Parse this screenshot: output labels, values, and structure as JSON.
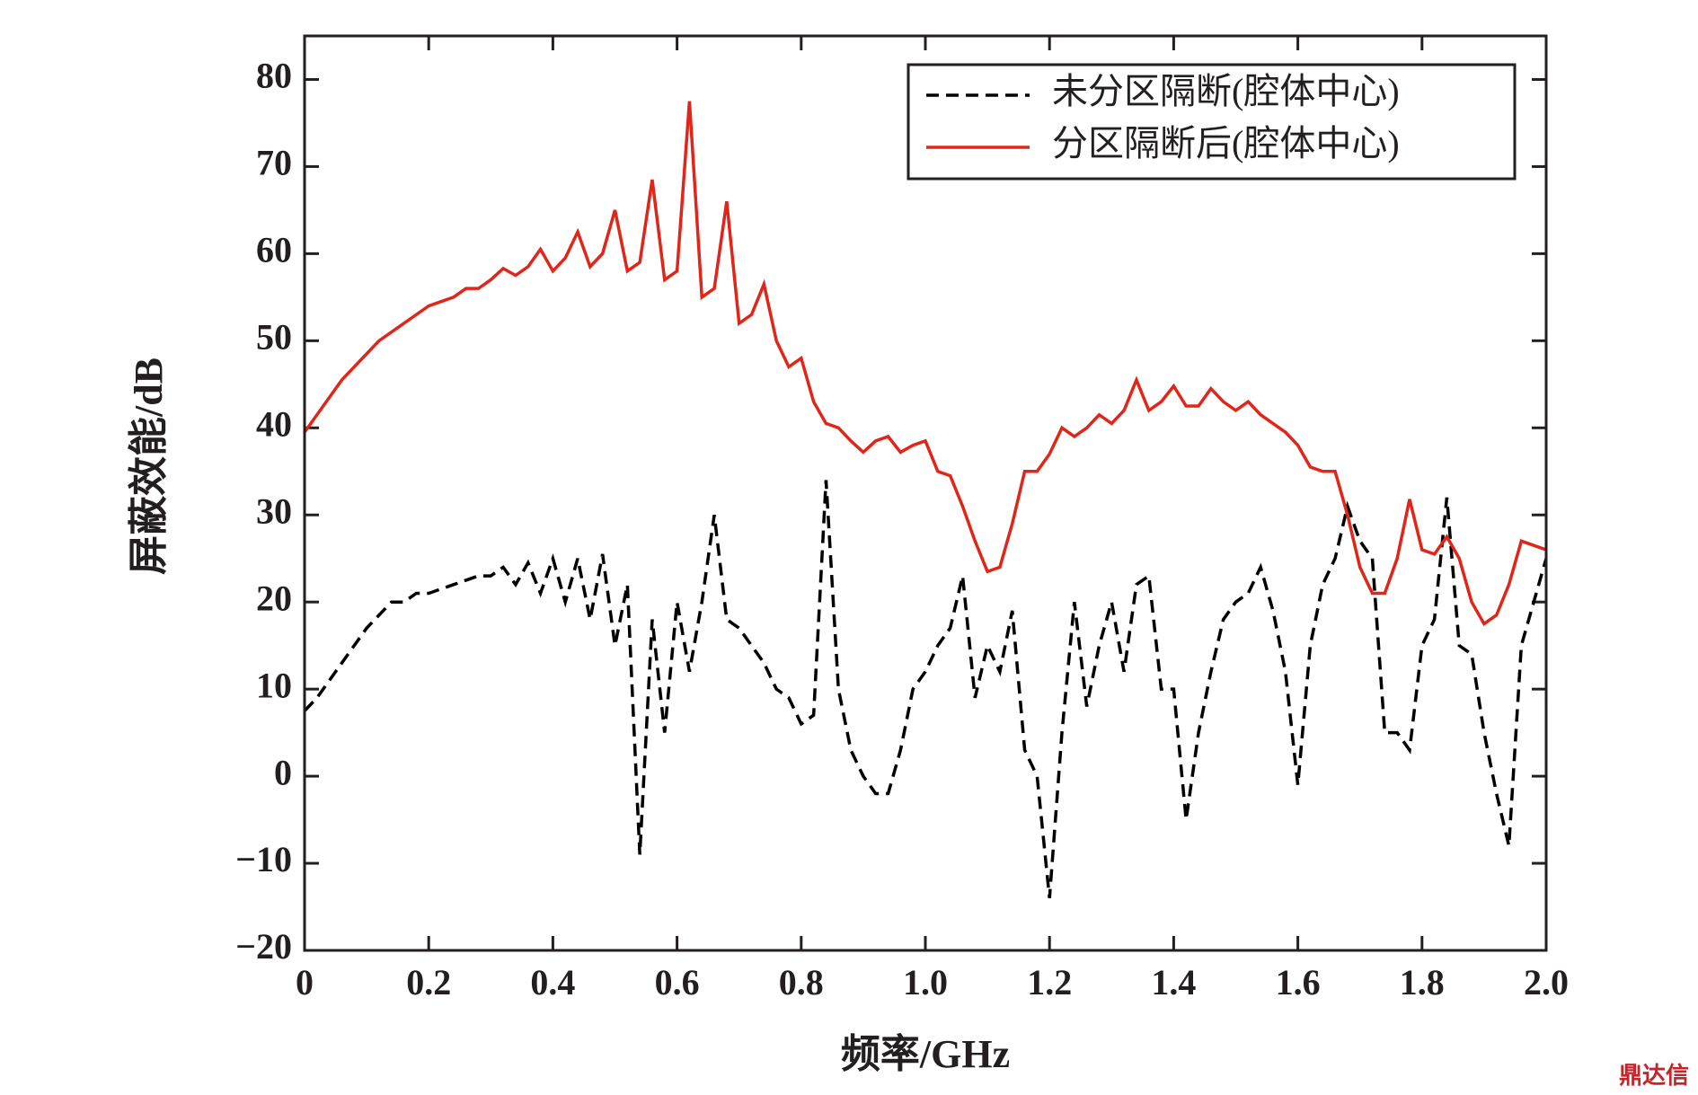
{
  "chart_data": {
    "type": "line",
    "xlabel": "频率/GHz",
    "ylabel": "屏蔽效能/dB",
    "x": [
      0,
      0.02,
      0.04,
      0.06,
      0.08,
      0.1,
      0.12,
      0.14,
      0.16,
      0.18,
      0.2,
      0.22,
      0.24,
      0.26,
      0.28,
      0.3,
      0.32,
      0.34,
      0.36,
      0.38,
      0.4,
      0.42,
      0.44,
      0.46,
      0.48,
      0.5,
      0.52,
      0.54,
      0.56,
      0.58,
      0.6,
      0.62,
      0.64,
      0.66,
      0.68,
      0.7,
      0.72,
      0.74,
      0.76,
      0.78,
      0.8,
      0.82,
      0.84,
      0.86,
      0.88,
      0.9,
      0.92,
      0.94,
      0.96,
      0.98,
      1,
      1.02,
      1.04,
      1.06,
      1.08,
      1.1,
      1.12,
      1.14,
      1.16,
      1.18,
      1.2,
      1.22,
      1.24,
      1.26,
      1.28,
      1.3,
      1.32,
      1.34,
      1.36,
      1.38,
      1.4,
      1.42,
      1.44,
      1.46,
      1.48,
      1.5,
      1.52,
      1.54,
      1.56,
      1.58,
      1.6,
      1.62,
      1.64,
      1.66,
      1.68,
      1.7,
      1.72,
      1.74,
      1.76,
      1.78,
      1.8,
      1.82,
      1.84,
      1.86,
      1.88,
      1.9,
      1.92,
      1.94,
      1.96,
      1.98,
      2
    ],
    "series": [
      {
        "name": "未分区隔断(腔体中心)",
        "color": "#000000",
        "dash": true,
        "values": [
          7.5,
          9,
          11,
          13,
          15,
          17,
          18.5,
          20,
          20,
          21,
          21,
          21.5,
          22,
          22.5,
          23,
          23,
          24,
          22,
          24.5,
          21,
          25,
          20,
          25,
          18,
          25.5,
          15,
          22,
          -9,
          18,
          5,
          20,
          12,
          20,
          30,
          18,
          17,
          15,
          13,
          10,
          9,
          6,
          7,
          34,
          10,
          3,
          0,
          -2,
          -2,
          3,
          10,
          12,
          15,
          17,
          23,
          9,
          15,
          12,
          19,
          3,
          0,
          -14,
          5,
          20,
          8,
          15,
          20,
          12,
          22,
          23,
          10,
          10,
          -5,
          5,
          12,
          18,
          20,
          21,
          24,
          19,
          12,
          -1,
          15,
          22,
          25,
          31,
          27,
          25,
          5,
          5,
          3,
          15,
          18,
          32,
          15,
          14,
          5,
          -2,
          -8,
          15,
          20,
          25
        ]
      },
      {
        "name": "分区隔断后(腔体中心)",
        "color": "#e0261b",
        "dash": false,
        "values": [
          39.5,
          41.5,
          43.5,
          45.5,
          47,
          48.5,
          50,
          51,
          52,
          53,
          54,
          54.5,
          55,
          56,
          56,
          57,
          58.3,
          57.5,
          58.5,
          60.5,
          58,
          59.5,
          62.5,
          58.5,
          60,
          65,
          58,
          59,
          68.5,
          57,
          58,
          77.5,
          55,
          56,
          66,
          52,
          53,
          56.5,
          50,
          47,
          48,
          43,
          40.5,
          40,
          38.5,
          37.2,
          38.5,
          39,
          37.2,
          38,
          38.5,
          35,
          34.5,
          31,
          27,
          23.5,
          24,
          29,
          35,
          35,
          37,
          40,
          39,
          40,
          41.5,
          40.5,
          42,
          45.5,
          42,
          43,
          44.8,
          42.5,
          42.5,
          44.5,
          43,
          42,
          43,
          41.5,
          40.5,
          39.5,
          38,
          35.5,
          35,
          35,
          30,
          24,
          21,
          21,
          25,
          31.8,
          26,
          25.5,
          27.5,
          25,
          20,
          17.5,
          18.5,
          22,
          27,
          26.5,
          26
        ]
      }
    ],
    "xlim": [
      0,
      2.0
    ],
    "ylim": [
      -20,
      85
    ],
    "xticks": [
      {
        "value": 0,
        "label": "0"
      },
      0.2,
      0.4,
      0.6,
      0.8,
      {
        "value": 1,
        "label": "1.0"
      },
      1.2,
      1.4,
      1.6,
      1.8,
      {
        "value": 2,
        "label": "2.0"
      }
    ],
    "yticks": [
      {
        "value": -20,
        "label": "−20"
      },
      {
        "value": -10,
        "label": "−10"
      },
      0,
      10,
      20,
      30,
      40,
      50,
      60,
      70,
      80
    ],
    "legend": "upper right"
  },
  "watermark": "鼎达信"
}
